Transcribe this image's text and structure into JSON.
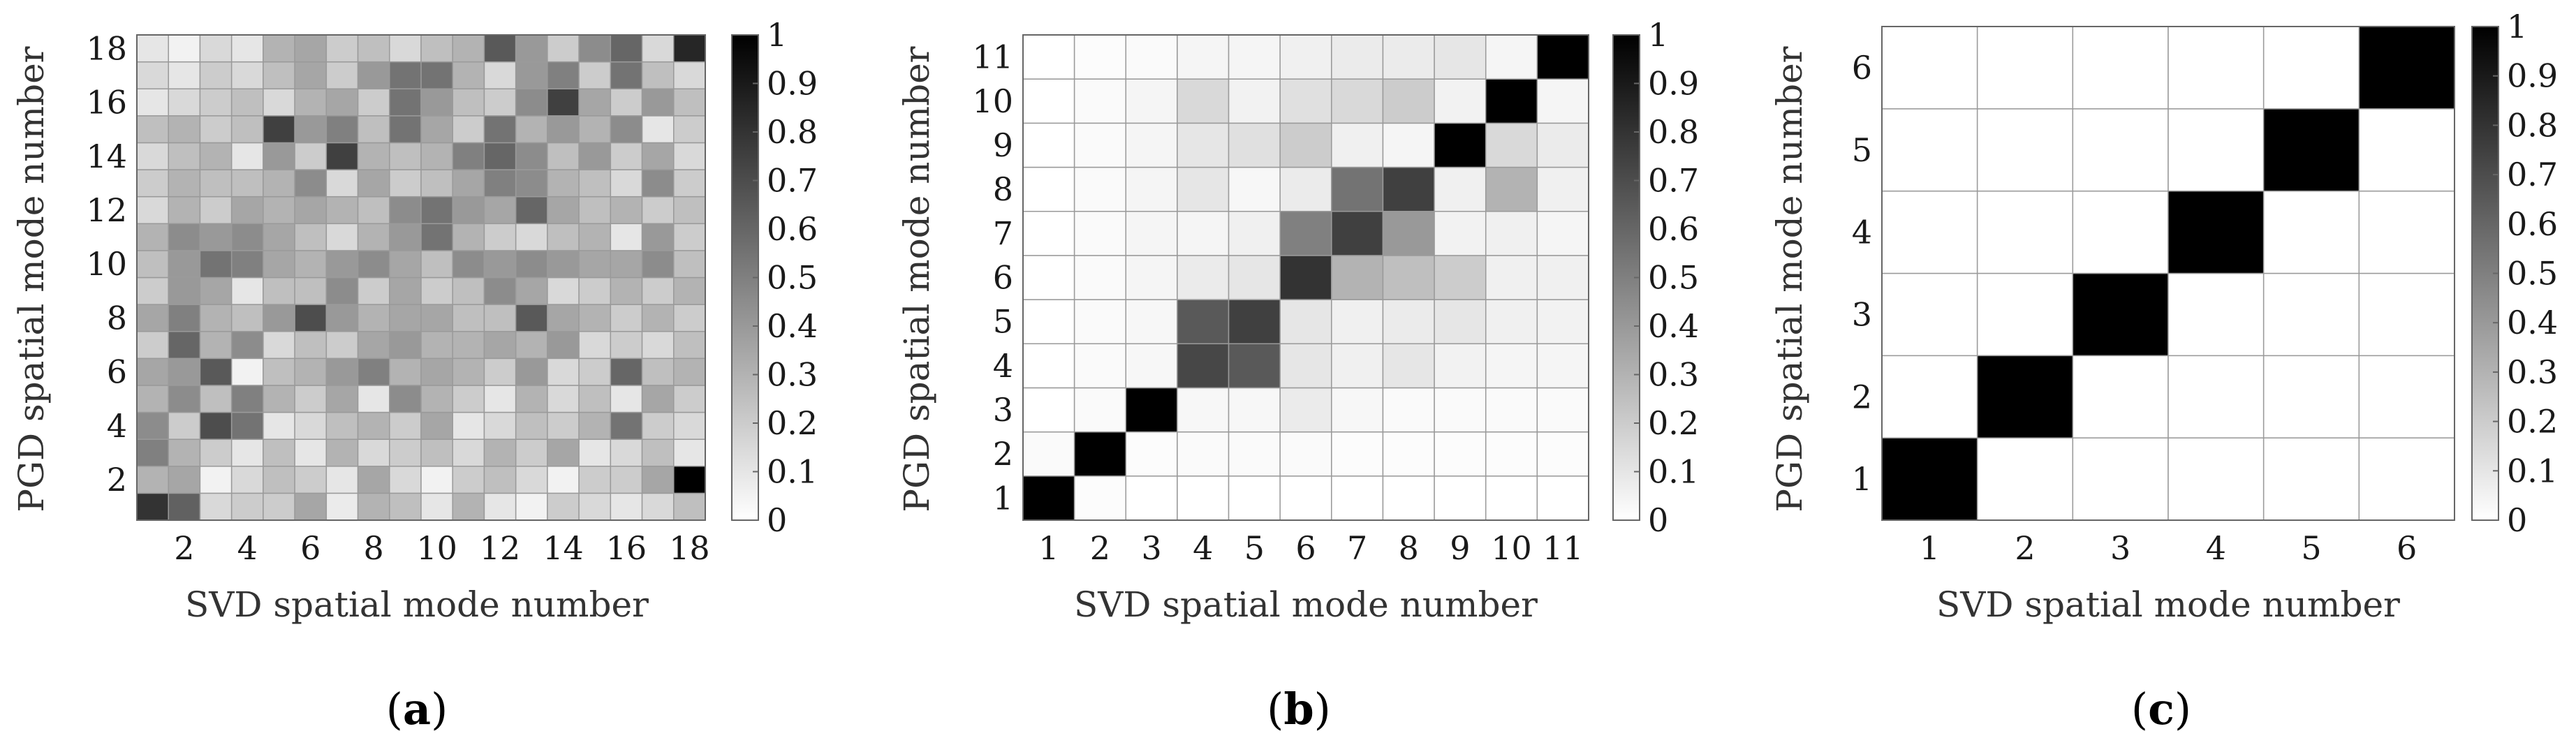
{
  "chart_data": [
    {
      "type": "heatmap",
      "panel_label": "a",
      "xlabel": "SVD spatial mode number",
      "ylabel": "PGD spatial mode number",
      "n": 18,
      "x_ticks": [
        2,
        4,
        6,
        8,
        10,
        12,
        14,
        16,
        18
      ],
      "y_ticks": [
        2,
        4,
        6,
        8,
        10,
        12,
        14,
        16,
        18
      ],
      "colorbar": {
        "min": 0,
        "max": 1,
        "ticks": [
          "0",
          "0.1",
          "0.2",
          "0.3",
          "0.4",
          "0.5",
          "0.6",
          "0.7",
          "0.8",
          "0.9",
          "1"
        ]
      },
      "colormap": [
        "#ffffff",
        "#000000"
      ],
      "z": [
        [
          0.8,
          0.62,
          0.15,
          0.2,
          0.2,
          0.35,
          0.08,
          0.3,
          0.25,
          0.1,
          0.3,
          0.1,
          0.05,
          0.2,
          0.15,
          0.1,
          0.15,
          0.25
        ],
        [
          0.3,
          0.35,
          0.05,
          0.15,
          0.25,
          0.2,
          0.1,
          0.35,
          0.15,
          0.05,
          0.2,
          0.25,
          0.15,
          0.05,
          0.2,
          0.2,
          0.35,
          1.0
        ],
        [
          0.5,
          0.3,
          0.2,
          0.1,
          0.25,
          0.1,
          0.3,
          0.15,
          0.2,
          0.25,
          0.15,
          0.3,
          0.2,
          0.35,
          0.1,
          0.15,
          0.25,
          0.1
        ],
        [
          0.45,
          0.2,
          0.7,
          0.55,
          0.1,
          0.15,
          0.25,
          0.3,
          0.2,
          0.35,
          0.1,
          0.15,
          0.25,
          0.2,
          0.3,
          0.55,
          0.2,
          0.15
        ],
        [
          0.3,
          0.45,
          0.25,
          0.5,
          0.3,
          0.2,
          0.35,
          0.1,
          0.45,
          0.3,
          0.2,
          0.1,
          0.3,
          0.15,
          0.25,
          0.1,
          0.35,
          0.2
        ],
        [
          0.35,
          0.4,
          0.65,
          0.05,
          0.25,
          0.3,
          0.4,
          0.5,
          0.3,
          0.35,
          0.3,
          0.2,
          0.4,
          0.15,
          0.2,
          0.6,
          0.25,
          0.3
        ],
        [
          0.2,
          0.6,
          0.3,
          0.45,
          0.15,
          0.25,
          0.2,
          0.35,
          0.4,
          0.3,
          0.3,
          0.35,
          0.3,
          0.4,
          0.15,
          0.2,
          0.15,
          0.25
        ],
        [
          0.35,
          0.5,
          0.3,
          0.25,
          0.4,
          0.7,
          0.4,
          0.3,
          0.35,
          0.35,
          0.25,
          0.25,
          0.65,
          0.35,
          0.3,
          0.2,
          0.3,
          0.2
        ],
        [
          0.2,
          0.4,
          0.35,
          0.1,
          0.25,
          0.25,
          0.45,
          0.2,
          0.35,
          0.2,
          0.25,
          0.45,
          0.35,
          0.15,
          0.2,
          0.3,
          0.2,
          0.3
        ],
        [
          0.25,
          0.4,
          0.55,
          0.5,
          0.35,
          0.3,
          0.4,
          0.45,
          0.35,
          0.25,
          0.45,
          0.4,
          0.45,
          0.4,
          0.35,
          0.35,
          0.45,
          0.25
        ],
        [
          0.3,
          0.45,
          0.4,
          0.45,
          0.35,
          0.25,
          0.15,
          0.3,
          0.4,
          0.55,
          0.3,
          0.2,
          0.15,
          0.25,
          0.3,
          0.1,
          0.4,
          0.2
        ],
        [
          0.15,
          0.3,
          0.2,
          0.35,
          0.3,
          0.35,
          0.3,
          0.25,
          0.45,
          0.55,
          0.4,
          0.35,
          0.6,
          0.35,
          0.25,
          0.3,
          0.2,
          0.25
        ],
        [
          0.2,
          0.3,
          0.25,
          0.25,
          0.3,
          0.45,
          0.15,
          0.35,
          0.2,
          0.25,
          0.35,
          0.5,
          0.45,
          0.3,
          0.25,
          0.15,
          0.45,
          0.2
        ],
        [
          0.15,
          0.25,
          0.3,
          0.1,
          0.4,
          0.2,
          0.75,
          0.3,
          0.25,
          0.3,
          0.5,
          0.6,
          0.45,
          0.25,
          0.4,
          0.2,
          0.35,
          0.15
        ],
        [
          0.25,
          0.3,
          0.2,
          0.25,
          0.75,
          0.4,
          0.5,
          0.25,
          0.55,
          0.35,
          0.2,
          0.55,
          0.3,
          0.4,
          0.3,
          0.45,
          0.1,
          0.2
        ],
        [
          0.1,
          0.15,
          0.2,
          0.25,
          0.15,
          0.3,
          0.35,
          0.2,
          0.55,
          0.4,
          0.25,
          0.2,
          0.45,
          0.75,
          0.35,
          0.2,
          0.4,
          0.25
        ],
        [
          0.15,
          0.1,
          0.2,
          0.15,
          0.25,
          0.35,
          0.2,
          0.4,
          0.55,
          0.55,
          0.3,
          0.15,
          0.4,
          0.5,
          0.2,
          0.55,
          0.25,
          0.15
        ],
        [
          0.1,
          0.05,
          0.15,
          0.1,
          0.3,
          0.35,
          0.2,
          0.25,
          0.15,
          0.25,
          0.3,
          0.65,
          0.4,
          0.2,
          0.45,
          0.6,
          0.15,
          0.85
        ]
      ]
    },
    {
      "type": "heatmap",
      "panel_label": "b",
      "xlabel": "SVD spatial mode number",
      "ylabel": "PGD spatial mode number",
      "n": 11,
      "x_ticks": [
        1,
        2,
        3,
        4,
        5,
        6,
        7,
        8,
        9,
        10,
        11
      ],
      "y_ticks": [
        1,
        2,
        3,
        4,
        5,
        6,
        7,
        8,
        9,
        10,
        11
      ],
      "colorbar": {
        "min": 0,
        "max": 1,
        "ticks": [
          "0",
          "0.1",
          "0.2",
          "0.3",
          "0.4",
          "0.5",
          "0.6",
          "0.7",
          "0.8",
          "0.9",
          "1"
        ]
      },
      "colormap": [
        "#ffffff",
        "#000000"
      ],
      "z": [
        [
          1.0,
          0.01,
          0.0,
          0.0,
          0.0,
          0.0,
          0.0,
          0.0,
          0.0,
          0.0,
          0.0
        ],
        [
          0.02,
          1.0,
          0.01,
          0.02,
          0.02,
          0.02,
          0.01,
          0.01,
          0.01,
          0.01,
          0.01
        ],
        [
          0.0,
          0.02,
          1.0,
          0.03,
          0.03,
          0.08,
          0.03,
          0.02,
          0.02,
          0.02,
          0.02
        ],
        [
          0.0,
          0.02,
          0.03,
          0.72,
          0.65,
          0.1,
          0.06,
          0.1,
          0.05,
          0.04,
          0.04
        ],
        [
          0.0,
          0.02,
          0.03,
          0.65,
          0.75,
          0.1,
          0.06,
          0.08,
          0.1,
          0.06,
          0.05
        ],
        [
          0.0,
          0.02,
          0.04,
          0.08,
          0.1,
          0.8,
          0.3,
          0.25,
          0.2,
          0.06,
          0.06
        ],
        [
          0.0,
          0.02,
          0.04,
          0.04,
          0.06,
          0.5,
          0.75,
          0.4,
          0.05,
          0.06,
          0.04
        ],
        [
          0.0,
          0.02,
          0.04,
          0.1,
          0.03,
          0.08,
          0.55,
          0.75,
          0.06,
          0.3,
          0.06
        ],
        [
          0.0,
          0.02,
          0.04,
          0.1,
          0.12,
          0.2,
          0.06,
          0.04,
          1.0,
          0.15,
          0.08
        ],
        [
          0.0,
          0.02,
          0.04,
          0.15,
          0.05,
          0.12,
          0.15,
          0.2,
          0.05,
          1.0,
          0.04
        ],
        [
          0.0,
          0.01,
          0.02,
          0.04,
          0.04,
          0.06,
          0.08,
          0.08,
          0.1,
          0.04,
          1.0
        ]
      ]
    },
    {
      "type": "heatmap",
      "panel_label": "c",
      "xlabel": "SVD spatial mode number",
      "ylabel": "PGD spatial mode number",
      "n": 6,
      "x_ticks": [
        1,
        2,
        3,
        4,
        5,
        6
      ],
      "y_ticks": [
        1,
        2,
        3,
        4,
        5,
        6
      ],
      "colorbar": {
        "min": 0,
        "max": 1,
        "ticks": [
          "0",
          "0.1",
          "0.2",
          "0.3",
          "0.4",
          "0.5",
          "0.6",
          "0.7",
          "0.8",
          "0.9",
          "1"
        ]
      },
      "colormap": [
        "#ffffff",
        "#000000"
      ],
      "z": [
        [
          1.0,
          0.0,
          0.0,
          0.0,
          0.0,
          0.0
        ],
        [
          0.0,
          1.0,
          0.0,
          0.0,
          0.0,
          0.0
        ],
        [
          0.0,
          0.0,
          1.0,
          0.0,
          0.0,
          0.0
        ],
        [
          0.0,
          0.0,
          0.0,
          1.0,
          0.0,
          0.0
        ],
        [
          0.0,
          0.0,
          0.0,
          0.0,
          1.0,
          0.0
        ],
        [
          0.0,
          0.0,
          0.0,
          0.0,
          0.0,
          1.0
        ]
      ]
    }
  ]
}
